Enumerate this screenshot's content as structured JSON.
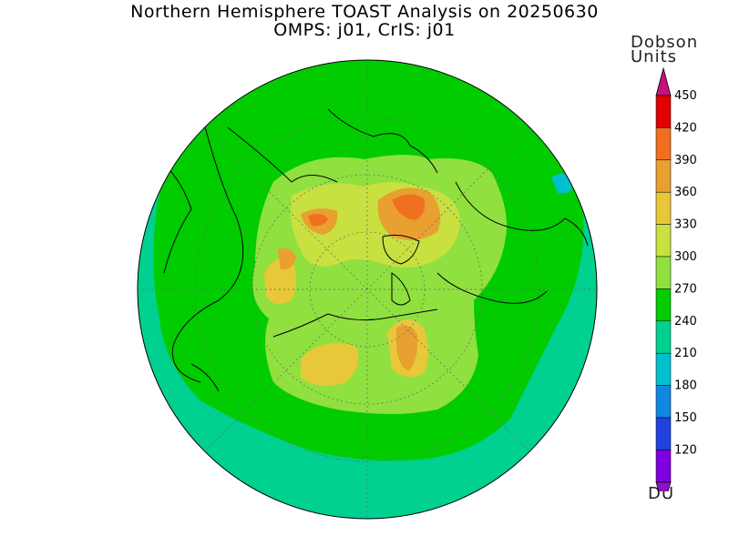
{
  "title": {
    "line1": "Northern Hemisphere TOAST Analysis on 20250630",
    "line2": "OMPS: j01, CrIS: j01"
  },
  "colorbar": {
    "title_line1": "Dobson",
    "title_line2": "Units",
    "unit": "DU",
    "levels": [
      {
        "value": "450",
        "color": "#e00000"
      },
      {
        "value": "420",
        "color": "#f07020"
      },
      {
        "value": "390",
        "color": "#e8a030"
      },
      {
        "value": "360",
        "color": "#e8c838"
      },
      {
        "value": "330",
        "color": "#c8e040"
      },
      {
        "value": "300",
        "color": "#90e040"
      },
      {
        "value": "270",
        "color": "#00cc00"
      },
      {
        "value": "240",
        "color": "#00d090"
      },
      {
        "value": "210",
        "color": "#00c0d0"
      },
      {
        "value": "180",
        "color": "#1088e0"
      },
      {
        "value": "150",
        "color": "#2040e0"
      },
      {
        "value": "120",
        "color": "#8000e0"
      }
    ],
    "top_arrow_color": "#c8107a",
    "bottom_arrow_color": "#9010c8"
  },
  "map": {
    "projection": "north-polar-stereographic",
    "background_color": "#00d090"
  }
}
